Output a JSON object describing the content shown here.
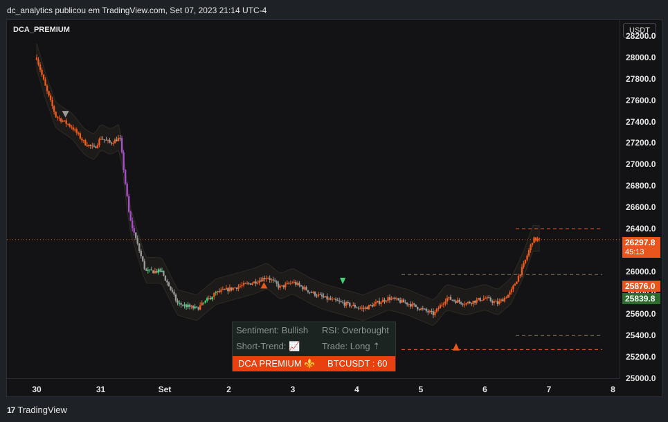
{
  "header": {
    "published_line": "dc_analytics publicou em TradingView.com, Set 07, 2023 21:14 UTC-4"
  },
  "chart": {
    "symbol_label": "DCA_PREMIUM",
    "currency_button": "USDT",
    "price_ticks": [
      "28200.0",
      "28000.0",
      "27800.0",
      "27600.0",
      "27400.0",
      "27200.0",
      "27000.0",
      "26800.0",
      "26600.0",
      "26400.0",
      "26000.0",
      "25800.0",
      "25600.0",
      "25400.0",
      "25200.0",
      "25000.0"
    ],
    "time_labels": [
      "30",
      "31",
      "Set",
      "2",
      "3",
      "4",
      "5",
      "6",
      "7",
      "8"
    ],
    "current_price": "26297.8",
    "countdown": "45:13",
    "level_orange": "25876.0",
    "level_green": "25839.8"
  },
  "info_panel": {
    "sentiment": "Sentiment: Bullish",
    "rsi": "RSI: Overbought",
    "short_trend": "Short-Trend: 📈",
    "trade": "Trade: Long ⇡",
    "brand": "DCA PREMIUM ⚜️",
    "pair": "BTCUSDT : 60"
  },
  "footer": {
    "brand": "TradingView",
    "logo_glyph": "17"
  },
  "colors": {
    "background": "#131315",
    "up_orange": "#f05a1a",
    "down_gray": "#9a9a9a",
    "green": "#3fd47a",
    "purple": "#a64fc8",
    "accent_orange": "#e8561e",
    "accent_green": "#2e6b2e"
  },
  "chart_data": {
    "type": "candlestick",
    "ylim": [
      25000,
      28350
    ],
    "time_axis": [
      "30",
      "31",
      "Set",
      "2",
      "3",
      "4",
      "5",
      "6",
      "7",
      "8"
    ],
    "current_price": 26297.8,
    "levels": [
      26400,
      25970,
      25876,
      25839.8,
      25400,
      25270
    ],
    "close_path": [
      {
        "t": 0.0,
        "p": 28000
      },
      {
        "t": 0.15,
        "p": 27700
      },
      {
        "t": 0.3,
        "p": 27450
      },
      {
        "t": 0.55,
        "p": 27350
      },
      {
        "t": 0.75,
        "p": 27200
      },
      {
        "t": 0.9,
        "p": 27150
      },
      {
        "t": 1.0,
        "p": 27250
      },
      {
        "t": 1.15,
        "p": 27200
      },
      {
        "t": 1.3,
        "p": 27250
      },
      {
        "t": 1.45,
        "p": 26500
      },
      {
        "t": 1.55,
        "p": 26300
      },
      {
        "t": 1.7,
        "p": 26000
      },
      {
        "t": 1.95,
        "p": 26000
      },
      {
        "t": 2.2,
        "p": 25700
      },
      {
        "t": 2.5,
        "p": 25650
      },
      {
        "t": 2.8,
        "p": 25800
      },
      {
        "t": 3.1,
        "p": 25850
      },
      {
        "t": 3.4,
        "p": 25900
      },
      {
        "t": 3.6,
        "p": 25950
      },
      {
        "t": 3.8,
        "p": 25850
      },
      {
        "t": 4.0,
        "p": 25900
      },
      {
        "t": 4.3,
        "p": 25800
      },
      {
        "t": 4.5,
        "p": 25750
      },
      {
        "t": 4.8,
        "p": 25700
      },
      {
        "t": 5.1,
        "p": 25650
      },
      {
        "t": 5.5,
        "p": 25750
      },
      {
        "t": 5.8,
        "p": 25700
      },
      {
        "t": 6.0,
        "p": 25650
      },
      {
        "t": 6.2,
        "p": 25600
      },
      {
        "t": 6.4,
        "p": 25750
      },
      {
        "t": 6.7,
        "p": 25700
      },
      {
        "t": 7.0,
        "p": 25750
      },
      {
        "t": 7.2,
        "p": 25700
      },
      {
        "t": 7.4,
        "p": 25800
      },
      {
        "t": 7.6,
        "p": 26050
      },
      {
        "t": 7.75,
        "p": 26300
      },
      {
        "t": 7.85,
        "p": 26297.8
      }
    ],
    "annotations": [
      {
        "text": "Sentiment: Bullish"
      },
      {
        "text": "RSI: Overbought"
      },
      {
        "text": "Short-Trend: 📈"
      },
      {
        "text": "Trade: Long ⇡"
      }
    ]
  }
}
